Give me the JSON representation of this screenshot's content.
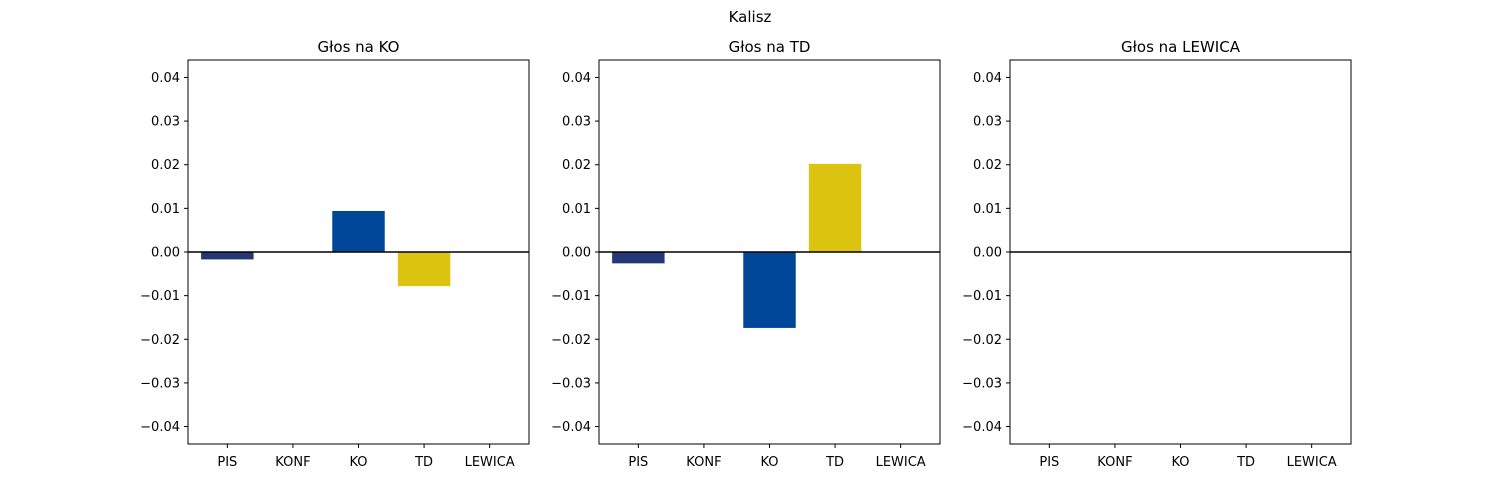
{
  "figure": {
    "suptitle": "Kalisz"
  },
  "colors": {
    "PIS": "#263778",
    "KONF": "#1b1b1b",
    "KO": "#00479a",
    "TD": "#dcc30f",
    "LEWICA": "#c0102e",
    "zero_line": "#000000"
  },
  "chart_data": [
    {
      "type": "bar",
      "title": "Głos na KO",
      "categories": [
        "PIS",
        "KONF",
        "KO",
        "TD",
        "LEWICA"
      ],
      "values": [
        -0.0017,
        0.0,
        0.0094,
        -0.0078,
        0.0
      ],
      "ylim": [
        -0.044,
        0.044
      ],
      "yticks": [
        "0.04",
        "0.03",
        "0.02",
        "0.01",
        "0.00",
        "−0.01",
        "−0.02",
        "−0.03",
        "−0.04"
      ],
      "ytick_values": [
        0.04,
        0.03,
        0.02,
        0.01,
        0.0,
        -0.01,
        -0.02,
        -0.03,
        -0.04
      ],
      "grid": false
    },
    {
      "type": "bar",
      "title": "Głos na TD",
      "categories": [
        "PIS",
        "KONF",
        "KO",
        "TD",
        "LEWICA"
      ],
      "values": [
        -0.0026,
        0.0,
        -0.0174,
        0.0202,
        0.0
      ],
      "ylim": [
        -0.044,
        0.044
      ],
      "yticks": [
        "0.04",
        "0.03",
        "0.02",
        "0.01",
        "0.00",
        "−0.01",
        "−0.02",
        "−0.03",
        "−0.04"
      ],
      "ytick_values": [
        0.04,
        0.03,
        0.02,
        0.01,
        0.0,
        -0.01,
        -0.02,
        -0.03,
        -0.04
      ],
      "grid": false
    },
    {
      "type": "bar",
      "title": "Głos na LEWICA",
      "categories": [
        "PIS",
        "KONF",
        "KO",
        "TD",
        "LEWICA"
      ],
      "values": [
        0.0,
        0.0,
        0.0,
        0.0,
        0.0
      ],
      "ylim": [
        -0.044,
        0.044
      ],
      "yticks": [
        "0.04",
        "0.03",
        "0.02",
        "0.01",
        "0.00",
        "−0.01",
        "−0.02",
        "−0.03",
        "−0.04"
      ],
      "ytick_values": [
        0.04,
        0.03,
        0.02,
        0.01,
        0.0,
        -0.01,
        -0.02,
        -0.03,
        -0.04
      ],
      "grid": false
    }
  ]
}
